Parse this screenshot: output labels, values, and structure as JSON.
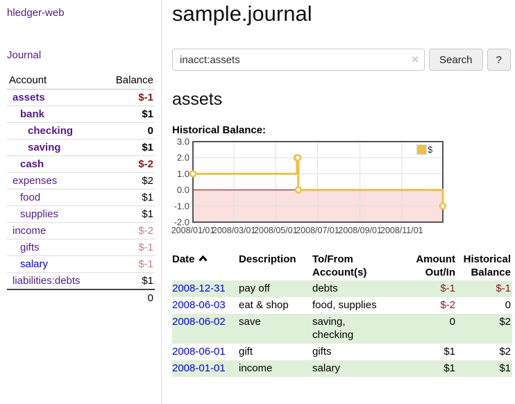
{
  "sidebar": {
    "app_title": "hledger-web",
    "journal_label": "Journal",
    "accounts_table": {
      "account_header": "Account",
      "balance_header": "Balance",
      "rows": [
        {
          "name": "assets",
          "balance": "$-1"
        },
        {
          "name": "bank",
          "balance": "$1"
        },
        {
          "name": "checking",
          "balance": "0"
        },
        {
          "name": "saving",
          "balance": "$1"
        },
        {
          "name": "cash",
          "balance": "$-2"
        },
        {
          "name": "expenses",
          "balance": "$2"
        },
        {
          "name": "food",
          "balance": "$1"
        },
        {
          "name": "supplies",
          "balance": "$1"
        },
        {
          "name": "income",
          "balance": "$-2"
        },
        {
          "name": "gifts",
          "balance": "$-1"
        },
        {
          "name": "salary",
          "balance": "$-1"
        },
        {
          "name": "liabilities:debts",
          "balance": "$1"
        }
      ],
      "total": "0"
    }
  },
  "header": {
    "title": "sample.journal"
  },
  "search": {
    "query": "inacct:assets",
    "clear_icon": "×",
    "search_label": "Search",
    "help_label": "?"
  },
  "account_page": {
    "heading": "assets",
    "chart_label": "Historical Balance:"
  },
  "chart_data": {
    "type": "line",
    "step": true,
    "title": "Historical Balance",
    "series": [
      {
        "name": "$",
        "color": "#EDC240",
        "points": [
          [
            "2008-01-01",
            1
          ],
          [
            "2008-06-01",
            2
          ],
          [
            "2008-06-02",
            2
          ],
          [
            "2008-06-03",
            0
          ],
          [
            "2008-12-31",
            -1
          ]
        ]
      }
    ],
    "xrange": [
      "2008-01-01",
      "2008-12-31"
    ],
    "ylim": [
      -2,
      3
    ],
    "y_ticks": [
      3,
      2,
      1,
      0,
      -1,
      -2
    ],
    "y_tick_labels": [
      "3.0",
      "2.0",
      "1.0",
      "0.0",
      "-1.0",
      "-2.0"
    ],
    "x_ticks": [
      "2008-01-01",
      "2008-03-01",
      "2008-05-01",
      "2008-07-01",
      "2008-09-01",
      "2008-11-01"
    ],
    "x_tick_labels": [
      "2008/01/01",
      "2008/03/01",
      "2008/05/01",
      "2008/07/01",
      "2008/09/01",
      "2008/11/01"
    ],
    "legend": {
      "label": "$",
      "position": "top-right"
    },
    "grid": true,
    "negative_region_color": "#fbe0e0",
    "zero_line_color": "#8b0000",
    "border_color": "#545454"
  },
  "register": {
    "headers": {
      "date": "Date",
      "description": "Description",
      "tofrom": "To/From\nAccount(s)",
      "amount": "Amount\nOut/In",
      "balance": "Historical\nBalance"
    },
    "rows": [
      {
        "date": "2008-12-31",
        "description": "pay off",
        "tofrom": "debts",
        "amount": "$-1",
        "balance": "$-1"
      },
      {
        "date": "2008-06-03",
        "description": "eat & shop",
        "tofrom": "food, supplies",
        "amount": "$-2",
        "balance": "0"
      },
      {
        "date": "2008-06-02",
        "description": "save",
        "tofrom": "saving,\nchecking",
        "amount": "0",
        "balance": "$2"
      },
      {
        "date": "2008-06-01",
        "description": "gift",
        "tofrom": "gifts",
        "amount": "$1",
        "balance": "$2"
      },
      {
        "date": "2008-01-01",
        "description": "income",
        "tofrom": "salary",
        "amount": "$1",
        "balance": "$1"
      }
    ]
  }
}
